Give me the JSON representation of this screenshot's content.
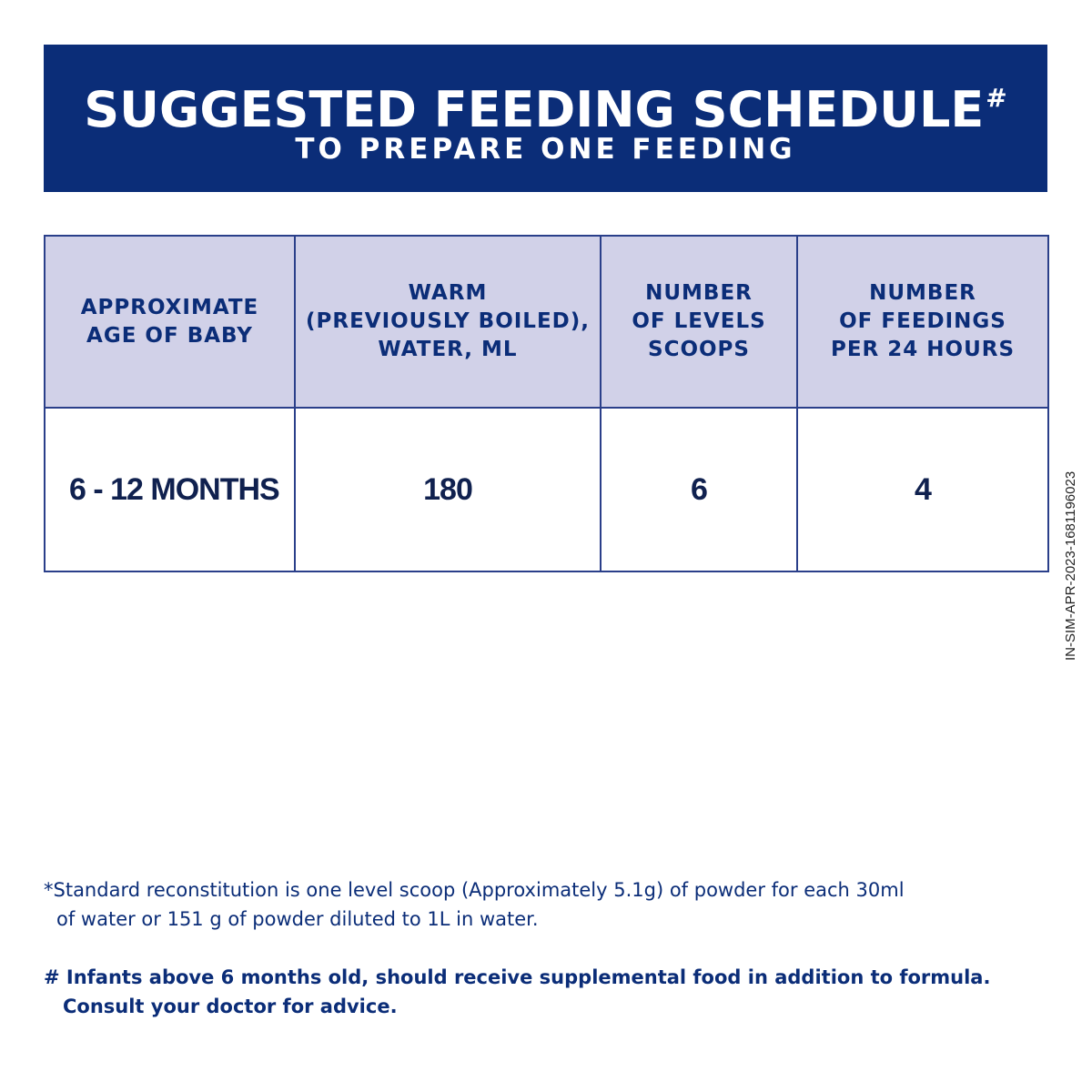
{
  "header": {
    "title": "SUGGESTED FEEDING SCHEDULE",
    "title_mark": "#",
    "subtitle": "TO PREPARE ONE FEEDING",
    "background_color": "#0b2d78"
  },
  "table": {
    "columns": [
      {
        "line1": "APPROXIMATE",
        "line2": "AGE OF BABY"
      },
      {
        "line1": "WARM",
        "line2": "(PREVIOUSLY BOILED),",
        "line3": "WATER, ML"
      },
      {
        "line1": "NUMBER",
        "line2": "OF LEVELS",
        "line3": "SCOOPS"
      },
      {
        "line1": "NUMBER",
        "line2": "OF FEEDINGS",
        "line3": "PER 24 HOURS"
      }
    ],
    "rows": [
      {
        "age": "6 - 12 MONTHS",
        "water_ml": "180",
        "scoops": "6",
        "feedings": "4"
      }
    ],
    "header_background_color": "#d1d1e8"
  },
  "side_code": "IN-SIM-APR-2023-1681196023",
  "notes": {
    "standard_line1": "*Standard reconstitution is one level scoop (Approximately 5.1g) of powder for each 30ml",
    "standard_line2": "of water or 151 g of powder diluted to 1L in water.",
    "infants_line1": "# Infants above 6 months old, should receive supplemental food in addition to formula.",
    "infants_line2": "Consult your doctor for advice."
  }
}
